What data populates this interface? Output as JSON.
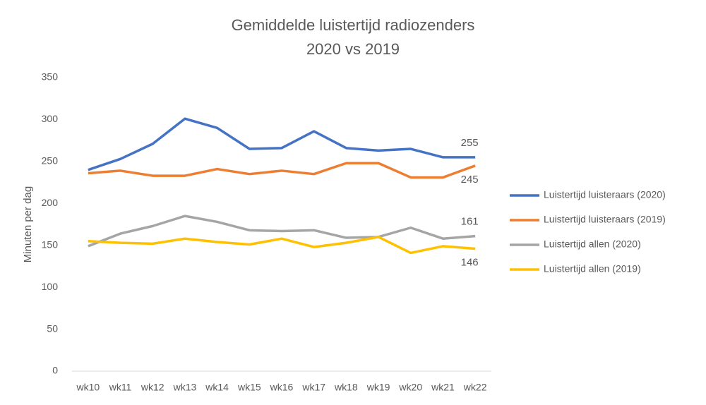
{
  "chart_data": {
    "type": "line",
    "title": "Gemiddelde luistertijd radiozenders",
    "subtitle": "2020 vs 2019",
    "y_label": "Minuten per dag",
    "categories": [
      "wk10",
      "wk11",
      "wk12",
      "wk13",
      "wk14",
      "wk15",
      "wk16",
      "wk17",
      "wk18",
      "wk19",
      "wk20",
      "wk21",
      "wk22"
    ],
    "series": [
      {
        "name": "Luistertijd luisteraars (2020)",
        "color": "#4472c4",
        "values": [
          240,
          253,
          271,
          301,
          290,
          265,
          266,
          286,
          266,
          263,
          265,
          255,
          255
        ]
      },
      {
        "name": "Luistertijd luisteraars (2019)",
        "color": "#ed7d31",
        "values": [
          236,
          239,
          233,
          233,
          241,
          235,
          239,
          235,
          248,
          248,
          231,
          231,
          245
        ]
      },
      {
        "name": "Luistertijd allen (2020)",
        "color": "#a5a5a5",
        "values": [
          149,
          164,
          173,
          185,
          178,
          168,
          167,
          168,
          159,
          160,
          171,
          158,
          161
        ]
      },
      {
        "name": "Luistertijd allen (2019)",
        "color": "#ffc000",
        "values": [
          155,
          153,
          152,
          158,
          154,
          151,
          158,
          148,
          153,
          160,
          141,
          149,
          146
        ]
      }
    ],
    "ylim": [
      0,
      350
    ],
    "yticks": [
      0,
      50,
      100,
      150,
      200,
      250,
      300,
      350
    ],
    "grid": false,
    "legend": "right",
    "last_point_labels": true
  }
}
